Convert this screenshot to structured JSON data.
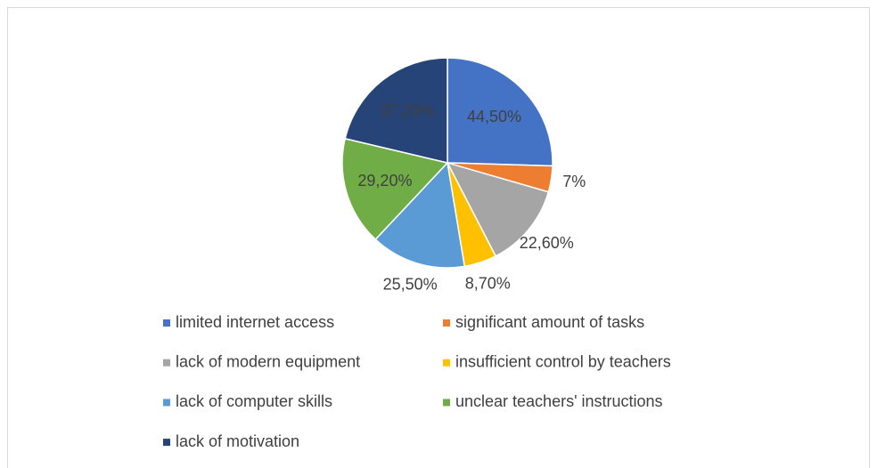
{
  "chart_data": {
    "type": "pie",
    "categories": [
      "limited internet access",
      "significant amount of tasks",
      "lack of modern equipment",
      "insufficient control by teachers",
      "lack of computer skills",
      "unclear teachers' instructions",
      "lack of motivation"
    ],
    "values": [
      44.5,
      7,
      22.6,
      8.7,
      25.5,
      29.2,
      37.2
    ],
    "value_labels": [
      "44,50%",
      "7%",
      "22,60%",
      "8,70%",
      "25,50%",
      "29,20%",
      "37,20%"
    ],
    "colors": [
      "#4472c4",
      "#ed7d31",
      "#a5a5a5",
      "#ffc000",
      "#5b9bd5",
      "#70ad47",
      "#264478"
    ],
    "legend": "bottom"
  }
}
